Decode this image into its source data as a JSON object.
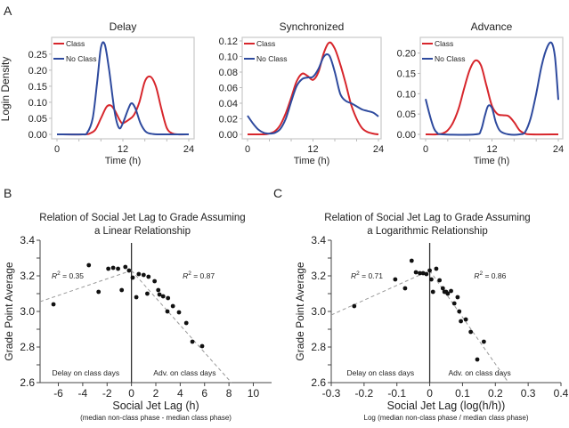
{
  "panel_labels": {
    "a": "A",
    "b": "B",
    "c": "C"
  },
  "chart_data": [
    {
      "id": "delay",
      "type": "line",
      "title": "Delay",
      "xlabel": "Time (h)",
      "ylabel": "Login Density",
      "xlim": [
        0,
        24
      ],
      "ylim": [
        0,
        0.28
      ],
      "xticks": [
        "0",
        "12",
        "24"
      ],
      "yticks": [
        "0.00",
        "0.05",
        "0.10",
        "0.15",
        "0.20",
        "0.25"
      ],
      "legend": [
        "Class",
        "No Class"
      ],
      "legend_position": "top-left",
      "series": [
        {
          "name": "Class",
          "color": "#d7262c",
          "x": [
            0,
            5,
            6,
            7,
            8,
            9,
            9.8,
            10.5,
            11.5,
            12,
            13,
            14,
            15,
            16,
            17,
            18,
            19,
            20,
            21,
            22,
            24
          ],
          "y": [
            0,
            0,
            0.003,
            0.015,
            0.05,
            0.085,
            0.09,
            0.075,
            0.042,
            0.035,
            0.045,
            0.06,
            0.1,
            0.165,
            0.18,
            0.15,
            0.08,
            0.02,
            0.003,
            0,
            0
          ]
        },
        {
          "name": "No Class",
          "color": "#2e4a9e",
          "x": [
            0,
            4.5,
            5.5,
            6.5,
            7.3,
            8,
            8.7,
            9.5,
            10.5,
            11.3,
            12,
            13,
            13.6,
            14.3,
            15.2,
            16.2,
            17.5,
            19,
            24
          ],
          "y": [
            0,
            0,
            0.005,
            0.05,
            0.16,
            0.27,
            0.28,
            0.2,
            0.07,
            0.02,
            0.035,
            0.08,
            0.097,
            0.08,
            0.035,
            0.008,
            0.001,
            0,
            0
          ]
        }
      ]
    },
    {
      "id": "synchronized",
      "type": "line",
      "title": "Synchronized",
      "xlabel": "Time (h)",
      "ylabel": "",
      "xlim": [
        0,
        24
      ],
      "ylim": [
        0,
        0.12
      ],
      "xticks": [
        "0",
        "12",
        "24"
      ],
      "yticks": [
        "0.00",
        "0.02",
        "0.04",
        "0.06",
        "0.08",
        "0.10",
        "0.12"
      ],
      "legend": [
        "Class",
        "No Class"
      ],
      "legend_position": "top-left",
      "series": [
        {
          "name": "Class",
          "color": "#d7262c",
          "x": [
            0,
            3,
            4,
            5,
            6,
            7,
            8,
            9,
            10,
            11,
            12,
            13,
            14,
            15,
            16,
            17,
            18,
            19,
            20,
            21,
            22,
            23,
            24
          ],
          "y": [
            0,
            0,
            0.001,
            0.004,
            0.012,
            0.027,
            0.047,
            0.068,
            0.078,
            0.075,
            0.07,
            0.08,
            0.105,
            0.118,
            0.11,
            0.09,
            0.065,
            0.038,
            0.02,
            0.008,
            0.003,
            0.001,
            0
          ]
        },
        {
          "name": "No Class",
          "color": "#2e4a9e",
          "x": [
            0,
            1,
            2,
            3,
            4,
            5,
            6,
            7,
            8,
            9,
            10,
            11,
            12,
            13,
            14,
            15,
            16,
            17,
            18,
            19,
            20,
            21,
            22,
            23,
            24
          ],
          "y": [
            0.024,
            0.014,
            0.006,
            0.002,
            0.001,
            0.002,
            0.007,
            0.02,
            0.042,
            0.062,
            0.071,
            0.073,
            0.074,
            0.084,
            0.1,
            0.101,
            0.08,
            0.052,
            0.043,
            0.04,
            0.036,
            0.032,
            0.03,
            0.028,
            0.023
          ]
        }
      ]
    },
    {
      "id": "advance",
      "type": "line",
      "title": "Advance",
      "xlabel": "Time (h)",
      "ylabel": "",
      "xlim": [
        0,
        24
      ],
      "ylim": [
        0,
        0.23
      ],
      "xticks": [
        "0",
        "12",
        "24"
      ],
      "yticks": [
        "0.00",
        "0.05",
        "0.10",
        "0.15",
        "0.20"
      ],
      "legend": [
        "Class",
        "No Class"
      ],
      "legend_position": "top-left",
      "series": [
        {
          "name": "Class",
          "color": "#d7262c",
          "x": [
            0,
            2,
            3,
            4,
            5,
            6,
            7,
            8,
            9,
            10,
            11,
            12,
            13,
            14,
            15,
            16,
            17,
            18,
            19,
            24
          ],
          "y": [
            0,
            0,
            0.002,
            0.01,
            0.03,
            0.065,
            0.115,
            0.16,
            0.182,
            0.17,
            0.12,
            0.07,
            0.05,
            0.047,
            0.045,
            0.03,
            0.01,
            0.002,
            0,
            0
          ]
        },
        {
          "name": "No Class",
          "color": "#2e4a9e",
          "x": [
            0,
            0.5,
            1,
            1.5,
            2,
            3,
            9,
            10,
            10.7,
            11.3,
            12,
            12.7,
            13.5,
            15,
            17,
            18,
            19,
            20,
            21,
            22,
            22.8,
            23.4,
            24
          ],
          "y": [
            0.087,
            0.06,
            0.035,
            0.015,
            0.005,
            0,
            0,
            0.01,
            0.045,
            0.07,
            0.065,
            0.03,
            0.008,
            0,
            0,
            0.006,
            0.04,
            0.1,
            0.17,
            0.215,
            0.225,
            0.19,
            0.085
          ]
        }
      ]
    },
    {
      "id": "linear",
      "type": "scatter",
      "title": "Relation of Social Jet Lag to Grade Assuming",
      "title_line2": "a Linear Relationship",
      "xlabel": "Social Jet Lag (h)",
      "xlabel_sub": "(median non-class phase - median class phase)",
      "ylabel": "Grade Point Average",
      "xlim": [
        -7.5,
        11.5
      ],
      "ylim": [
        2.6,
        3.4
      ],
      "xticks": [
        -6,
        -4,
        -2,
        0,
        2,
        4,
        6,
        8,
        10
      ],
      "yticks": [
        2.6,
        2.8,
        3.0,
        3.2,
        3.4
      ],
      "annotations": {
        "r2_left": "= 0.35",
        "r2_right": "= 0.87",
        "left_region": "Delay on class days",
        "right_region": "Adv. on class days"
      },
      "points": [
        [
          -6.4,
          3.04
        ],
        [
          -3.5,
          3.26
        ],
        [
          -2.7,
          3.11
        ],
        [
          -1.9,
          3.24
        ],
        [
          -1.5,
          3.245
        ],
        [
          -1.1,
          3.24
        ],
        [
          -0.8,
          3.12
        ],
        [
          -0.5,
          3.25
        ],
        [
          -0.2,
          3.23
        ],
        [
          0.1,
          3.19
        ],
        [
          0.4,
          3.08
        ],
        [
          0.6,
          3.21
        ],
        [
          1.0,
          3.205
        ],
        [
          1.3,
          3.1
        ],
        [
          1.4,
          3.195
        ],
        [
          1.9,
          3.17
        ],
        [
          2.2,
          3.12
        ],
        [
          2.6,
          3.085
        ],
        [
          3.0,
          3.075
        ],
        [
          3.4,
          3.03
        ],
        [
          3.9,
          2.995
        ],
        [
          4.5,
          2.935
        ],
        [
          5.0,
          2.83
        ],
        [
          5.8,
          2.805
        ],
        [
          2.3,
          3.095
        ],
        [
          2.95,
          3.0
        ]
      ],
      "fit_left": {
        "x": [
          -7.5,
          0
        ],
        "y": [
          3.055,
          3.23
        ]
      },
      "fit_right": {
        "x": [
          0,
          8.2
        ],
        "y": [
          3.23,
          2.6
        ]
      }
    },
    {
      "id": "logarithmic",
      "type": "scatter",
      "title": "Relation of Social Jet Lag to Grade Assuming",
      "title_line2": "a Logarithmic Relationship",
      "xlabel": "Social Jet Lag (log(h/h))",
      "xlabel_sub": "Log (median non-class phase / median class phase)",
      "ylabel": "Grade Point Average",
      "xlim": [
        -0.3,
        0.4
      ],
      "ylim": [
        2.6,
        3.4
      ],
      "xticks": [
        "-0.3",
        "-0.2",
        "-0.1",
        "0",
        "0.1",
        "0.2",
        "0.3",
        "0.4"
      ],
      "yticks": [
        2.6,
        2.8,
        3.0,
        3.2,
        3.4
      ],
      "annotations": {
        "r2_left": "= 0.71",
        "r2_right": "= 0.86",
        "left_region": "Delay on class days",
        "right_region": "Adv. on class days"
      },
      "points": [
        [
          -0.23,
          3.03
        ],
        [
          -0.105,
          3.18
        ],
        [
          -0.075,
          3.13
        ],
        [
          -0.055,
          3.285
        ],
        [
          -0.042,
          3.22
        ],
        [
          -0.03,
          3.215
        ],
        [
          -0.02,
          3.215
        ],
        [
          -0.01,
          3.21
        ],
        [
          0.0,
          3.23
        ],
        [
          0.005,
          3.18
        ],
        [
          0.01,
          3.11
        ],
        [
          0.02,
          3.24
        ],
        [
          0.03,
          3.175
        ],
        [
          0.04,
          3.13
        ],
        [
          0.05,
          3.11
        ],
        [
          0.055,
          3.1
        ],
        [
          0.065,
          3.115
        ],
        [
          0.075,
          3.045
        ],
        [
          0.085,
          3.08
        ],
        [
          0.095,
          2.945
        ],
        [
          0.11,
          2.955
        ],
        [
          0.125,
          2.885
        ],
        [
          0.145,
          2.73
        ],
        [
          0.165,
          2.83
        ],
        [
          0.045,
          3.11
        ],
        [
          0.09,
          3.0
        ]
      ],
      "fit_left": {
        "x": [
          -0.3,
          0.0
        ],
        "y": [
          2.98,
          3.23
        ]
      },
      "fit_right": {
        "x": [
          0.0,
          0.24
        ],
        "y": [
          3.23,
          2.6
        ]
      }
    }
  ]
}
